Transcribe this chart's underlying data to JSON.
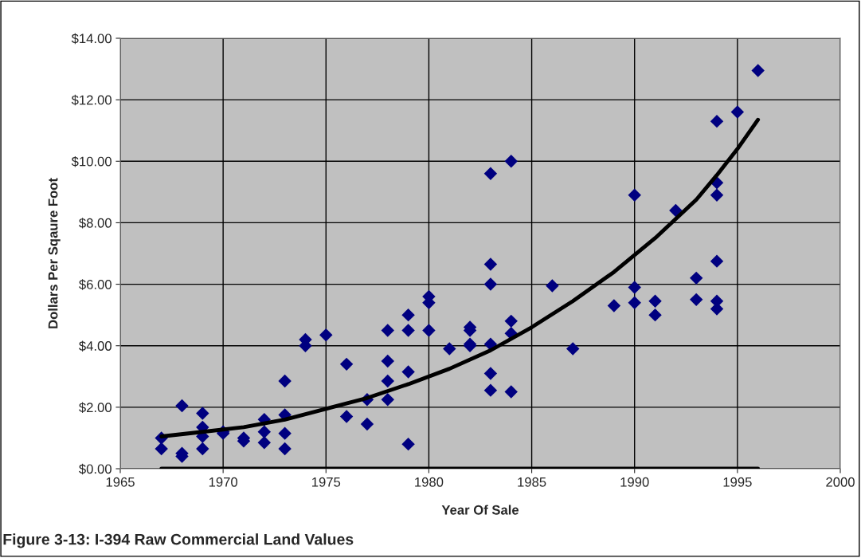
{
  "chart_data": {
    "type": "scatter",
    "xlabel": "Year Of Sale",
    "ylabel": "Dollars Per Sqaure Foot",
    "annotations": [
      "Figure 3-13: I-394 Raw Commercial Land Values"
    ],
    "xlim": [
      1965,
      2000
    ],
    "xticks": [
      1965,
      1970,
      1975,
      1980,
      1985,
      1990,
      1995,
      2000
    ],
    "ylim": [
      0,
      14
    ],
    "yticks": [
      {
        "value": 0,
        "label": "$0.00"
      },
      {
        "value": 2,
        "label": "$2.00"
      },
      {
        "value": 4,
        "label": "$4.00"
      },
      {
        "value": 6,
        "label": "$6.00"
      },
      {
        "value": 8,
        "label": "$8.00"
      },
      {
        "value": 10,
        "label": "$10.00"
      },
      {
        "value": 12,
        "label": "$12.00"
      },
      {
        "value": 14,
        "label": "$14.00"
      }
    ],
    "grid": true,
    "legend": false,
    "series": [
      {
        "color": "#000080",
        "marker": "diamond",
        "x": [
          1967,
          1967,
          1968,
          1968,
          1968,
          1969,
          1969,
          1969,
          1969,
          1970,
          1970,
          1971,
          1971,
          1972,
          1972,
          1972,
          1973,
          1973,
          1973,
          1973,
          1974,
          1974,
          1975,
          1976,
          1976,
          1977,
          1977,
          1978,
          1978,
          1978,
          1978,
          1979,
          1979,
          1979,
          1979,
          1980,
          1980,
          1980,
          1981,
          1982,
          1982,
          1982,
          1982,
          1983,
          1983,
          1983,
          1983,
          1983,
          1983,
          1984,
          1984,
          1984,
          1984,
          1986,
          1987,
          1989,
          1990,
          1990,
          1990,
          1991,
          1991,
          1992,
          1993,
          1993,
          1994,
          1994,
          1994,
          1994,
          1994,
          1994,
          1995,
          1996
        ],
        "values": [
          1.0,
          0.65,
          2.05,
          0.5,
          0.4,
          1.8,
          1.35,
          1.05,
          0.65,
          1.2,
          1.15,
          1.0,
          0.9,
          1.6,
          1.2,
          0.85,
          2.85,
          1.75,
          1.15,
          0.65,
          4.2,
          4.0,
          4.35,
          3.4,
          1.7,
          2.25,
          1.45,
          4.5,
          3.5,
          2.85,
          2.25,
          5.0,
          4.5,
          3.15,
          0.8,
          5.6,
          5.4,
          4.5,
          3.9,
          4.6,
          4.5,
          4.05,
          4.0,
          9.6,
          6.65,
          6.0,
          4.05,
          3.1,
          2.55,
          10.0,
          4.8,
          4.4,
          2.5,
          5.95,
          3.9,
          5.3,
          8.9,
          5.9,
          5.4,
          5.45,
          5.0,
          8.4,
          6.2,
          5.5,
          11.3,
          9.3,
          8.9,
          6.75,
          5.45,
          5.2,
          11.6,
          12.95
        ]
      },
      {
        "type": "line",
        "color": "#000000",
        "marker": "none",
        "line_style": "solid",
        "x": [
          1967,
          1969,
          1971,
          1973,
          1975,
          1977,
          1979,
          1981,
          1983,
          1985,
          1987,
          1989,
          1991,
          1993,
          1994,
          1995,
          1996
        ],
        "values": [
          1.05,
          1.2,
          1.35,
          1.6,
          1.95,
          2.3,
          2.75,
          3.25,
          3.85,
          4.6,
          5.45,
          6.4,
          7.5,
          8.75,
          9.55,
          10.4,
          11.35
        ]
      },
      {
        "type": "line",
        "color": "#000000",
        "marker": "none",
        "line_style": "solid",
        "x": [
          1967,
          1996
        ],
        "values": [
          0,
          0
        ]
      }
    ]
  }
}
